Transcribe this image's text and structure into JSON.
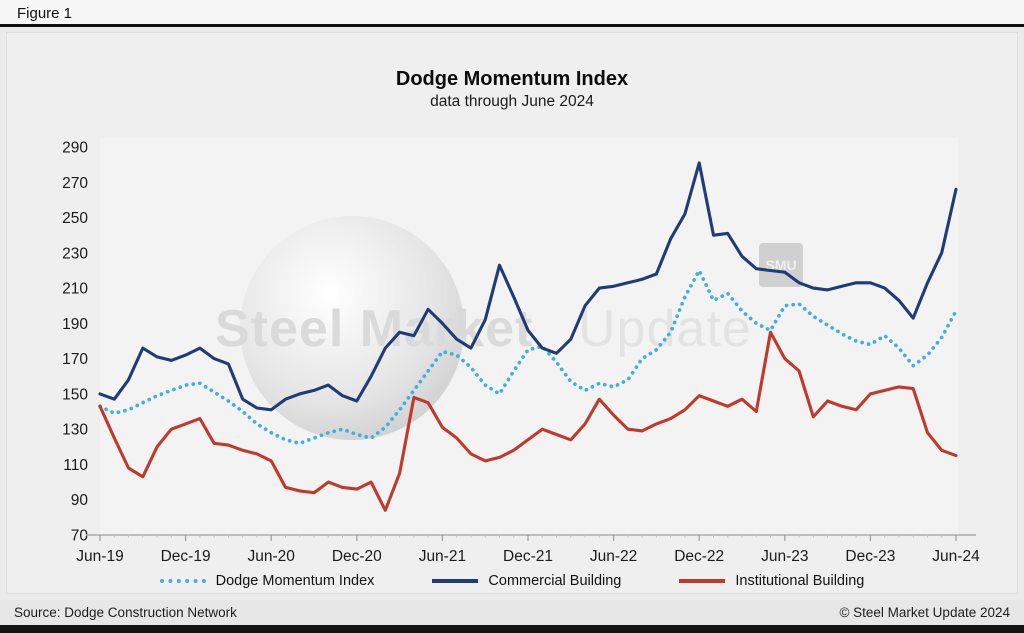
{
  "figure_label": "Figure 1",
  "title": "Dodge Momentum Index",
  "subtitle": "data through June 2024",
  "watermark": {
    "text_bold": "Steel Market",
    "text_light": "Update",
    "badge": "SMU"
  },
  "legend": [
    {
      "label": "Dodge Momentum Index",
      "color": "#3fb0e0",
      "style": "dotted"
    },
    {
      "label": "Commercial Building",
      "color": "#1f3c78",
      "style": "solid"
    },
    {
      "label": "Institutional Building",
      "color": "#c0392b",
      "style": "solid"
    }
  ],
  "footer": {
    "source": "Source: Dodge Construction Network",
    "copyright": "© Steel Market Update 2024"
  },
  "chart_data": {
    "type": "line",
    "title": "Dodge Momentum Index",
    "subtitle": "data through June 2024",
    "x_frequency": "monthly",
    "x_start": "Jun-19",
    "x_end": "Jun-24",
    "x_tick_labels": [
      "Jun-19",
      "Dec-19",
      "Jun-20",
      "Dec-20",
      "Jun-21",
      "Dec-21",
      "Jun-22",
      "Dec-22",
      "Jun-23",
      "Dec-23",
      "Jun-24"
    ],
    "y_ticks": [
      70,
      90,
      110,
      130,
      150,
      170,
      190,
      210,
      230,
      250,
      270,
      290
    ],
    "ylim": [
      70,
      290
    ],
    "grid": false,
    "legend_position": "bottom",
    "series": [
      {
        "name": "Dodge Momentum Index",
        "color": "#3fb0e0",
        "style": "dotted",
        "values": [
          143,
          139,
          141,
          145,
          149,
          152,
          155,
          156,
          151,
          146,
          140,
          133,
          128,
          124,
          122,
          125,
          128,
          130,
          127,
          125,
          131,
          141,
          152,
          163,
          174,
          172,
          165,
          155,
          150,
          163,
          175,
          177,
          168,
          157,
          152,
          156,
          154,
          158,
          170,
          175,
          185,
          205,
          220,
          203,
          207,
          197,
          190,
          186,
          200,
          201,
          194,
          189,
          184,
          180,
          178,
          183,
          176,
          166,
          172,
          182,
          197
        ]
      },
      {
        "name": "Commercial Building",
        "color": "#1f3c78",
        "style": "solid",
        "values": [
          150,
          147,
          158,
          176,
          171,
          169,
          172,
          176,
          170,
          167,
          147,
          142,
          141,
          147,
          150,
          152,
          155,
          149,
          146,
          160,
          176,
          185,
          183,
          198,
          190,
          181,
          176,
          192,
          223,
          205,
          186,
          176,
          173,
          181,
          200,
          210,
          211,
          213,
          215,
          218,
          238,
          252,
          281,
          240,
          241,
          228,
          221,
          220,
          219,
          213,
          210,
          209,
          211,
          213,
          213,
          210,
          203,
          193,
          213,
          230,
          266
        ]
      },
      {
        "name": "Institutional Building",
        "color": "#c0392b",
        "style": "solid",
        "values": [
          143,
          125,
          108,
          103,
          120,
          130,
          133,
          136,
          122,
          121,
          118,
          116,
          112,
          97,
          95,
          94,
          100,
          97,
          96,
          100,
          84,
          105,
          148,
          145,
          131,
          125,
          116,
          112,
          114,
          118,
          124,
          130,
          127,
          124,
          133,
          147,
          138,
          130,
          129,
          133,
          136,
          141,
          149,
          146,
          143,
          147,
          140,
          185,
          170,
          163,
          137,
          146,
          143,
          141,
          150,
          152,
          154,
          153,
          128,
          118,
          115
        ]
      }
    ]
  }
}
